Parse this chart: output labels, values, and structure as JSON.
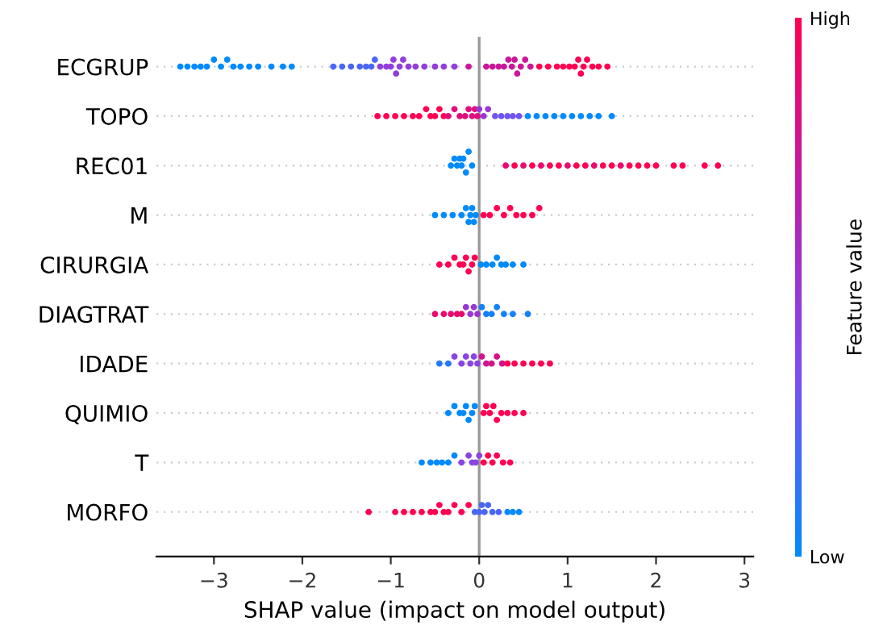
{
  "chart_data": {
    "type": "scatter",
    "orientation": "horizontal",
    "xlabel": "SHAP value (impact on model output)",
    "clabel": "Feature value",
    "categories": [
      "ECGRUP",
      "TOPO",
      "REC01",
      "M",
      "CIRURGIA",
      "DIAGTRAT",
      "IDADE",
      "QUIMIO",
      "T",
      "MORFO"
    ],
    "xlim": [
      -3.65,
      3.1
    ],
    "xticks": [
      {
        "value": -3,
        "label": "−3"
      },
      {
        "value": -2,
        "label": "−2"
      },
      {
        "value": -1,
        "label": "−1"
      },
      0,
      1,
      2,
      3
    ],
    "clim": [
      0,
      1
    ],
    "cticks": [
      {
        "value": 0,
        "label": "Low"
      },
      {
        "value": 1,
        "label": "High"
      }
    ],
    "grid": "y",
    "marker": "circle",
    "tick_labels": "xy",
    "ref_lines": [
      {
        "axis": "x",
        "value": 0,
        "color": "#999999"
      }
    ],
    "series": [
      {
        "x": [
          "ECGRUP",
          "ECGRUP",
          "ECGRUP",
          "ECGRUP",
          "ECGRUP",
          "ECGRUP",
          "ECGRUP",
          "ECGRUP",
          "ECGRUP",
          "ECGRUP",
          "ECGRUP",
          "ECGRUP",
          "ECGRUP",
          "ECGRUP",
          "ECGRUP",
          "ECGRUP",
          "ECGRUP",
          "ECGRUP",
          "ECGRUP",
          "ECGRUP",
          "ECGRUP",
          "ECGRUP",
          "ECGRUP",
          "ECGRUP",
          "ECGRUP",
          "ECGRUP",
          "ECGRUP",
          "ECGRUP",
          "ECGRUP",
          "ECGRUP",
          "ECGRUP",
          "ECGRUP",
          "ECGRUP",
          "ECGRUP",
          "ECGRUP",
          "ECGRUP",
          "ECGRUP",
          "ECGRUP",
          "ECGRUP",
          "ECGRUP",
          "ECGRUP",
          "ECGRUP",
          "ECGRUP",
          "ECGRUP",
          "ECGRUP",
          "ECGRUP",
          "ECGRUP",
          "ECGRUP",
          "ECGRUP",
          "ECGRUP",
          "ECGRUP",
          "ECGRUP",
          "ECGRUP",
          "ECGRUP",
          "ECGRUP",
          "ECGRUP",
          "ECGRUP",
          "ECGRUP",
          "ECGRUP",
          "ECGRUP"
        ],
        "values": [
          -3.38,
          -3.3,
          -3.22,
          -3.15,
          -3.08,
          -3.0,
          -2.92,
          -2.85,
          -2.78,
          -2.7,
          -2.6,
          -2.5,
          -2.35,
          -2.22,
          -2.12,
          -1.65,
          -1.55,
          -1.45,
          -1.35,
          -1.28,
          -1.22,
          -1.18,
          -1.12,
          -1.05,
          -1.0,
          -0.97,
          -0.94,
          -0.9,
          -0.86,
          -0.8,
          -0.72,
          -0.62,
          -0.5,
          -0.4,
          -0.28,
          -0.12,
          0.08,
          0.15,
          0.22,
          0.28,
          0.33,
          0.37,
          0.4,
          0.43,
          0.47,
          0.52,
          0.58,
          0.68,
          0.78,
          0.88,
          0.95,
          1.02,
          1.08,
          1.12,
          1.15,
          1.18,
          1.22,
          1.28,
          1.35,
          1.45
        ],
        "colors": [
          "#008afb",
          "#008afb",
          "#008afb",
          "#008afb",
          "#008afb",
          "#008afb",
          "#008afb",
          "#008afb",
          "#008afb",
          "#008afb",
          "#008afb",
          "#008afb",
          "#008afb",
          "#008afb",
          "#008afb",
          "#4a67f4",
          "#4a67f4",
          "#4a67f4",
          "#4a67f4",
          "#4a67f4",
          "#4a67f4",
          "#4a67f4",
          "#913eda",
          "#913eda",
          "#913eda",
          "#913eda",
          "#913eda",
          "#913eda",
          "#913eda",
          "#913eda",
          "#913eda",
          "#913eda",
          "#913eda",
          "#913eda",
          "#913eda",
          "#ca1799",
          "#ca1799",
          "#ca1799",
          "#ca1799",
          "#ca1799",
          "#ca1799",
          "#ca1799",
          "#ca1799",
          "#ca1799",
          "#ca1799",
          "#ca1799",
          "#ca1799",
          "#ff0052",
          "#ff0052",
          "#ff0052",
          "#ff0052",
          "#ff0052",
          "#ff0052",
          "#ff0052",
          "#ff0052",
          "#ff0052",
          "#ff0052",
          "#ff0052",
          "#ff0052",
          "#ff0052"
        ]
      },
      {
        "x": [
          "TOPO",
          "TOPO",
          "TOPO",
          "TOPO",
          "TOPO",
          "TOPO",
          "TOPO",
          "TOPO",
          "TOPO",
          "TOPO",
          "TOPO",
          "TOPO",
          "TOPO",
          "TOPO",
          "TOPO",
          "TOPO",
          "TOPO",
          "TOPO",
          "TOPO",
          "TOPO",
          "TOPO",
          "TOPO",
          "TOPO",
          "TOPO",
          "TOPO",
          "TOPO",
          "TOPO",
          "TOPO",
          "TOPO",
          "TOPO",
          "TOPO",
          "TOPO",
          "TOPO",
          "TOPO",
          "TOPO",
          "TOPO",
          "TOPO"
        ],
        "values": [
          -1.15,
          -1.05,
          -0.95,
          -0.85,
          -0.75,
          -0.68,
          -0.6,
          -0.55,
          -0.5,
          -0.45,
          -0.4,
          -0.35,
          -0.28,
          -0.22,
          -0.16,
          -0.12,
          -0.08,
          -0.05,
          -0.02,
          0.0,
          0.05,
          0.1,
          0.18,
          0.25,
          0.32,
          0.38,
          0.45,
          0.55,
          0.65,
          0.75,
          0.85,
          0.95,
          1.05,
          1.15,
          1.25,
          1.35,
          1.5
        ],
        "colors": [
          "#ff0052",
          "#ff0052",
          "#ff0052",
          "#ff0052",
          "#ff0052",
          "#ff0052",
          "#ff0052",
          "#ff0052",
          "#ff0052",
          "#ff0052",
          "#ff0052",
          "#e00e7c",
          "#e00e7c",
          "#e00e7c",
          "#e00e7c",
          "#e00e7c",
          "#e00e7c",
          "#e00e7c",
          "#e00e7c",
          "#9a37d0",
          "#9a37d0",
          "#9a37d0",
          "#7055f1",
          "#7055f1",
          "#7055f1",
          "#7055f1",
          "#7055f1",
          "#008afb",
          "#008afb",
          "#008afb",
          "#008afb",
          "#008afb",
          "#008afb",
          "#008afb",
          "#008afb",
          "#008afb",
          "#008afb"
        ]
      },
      {
        "x": [
          "REC01",
          "REC01",
          "REC01",
          "REC01",
          "REC01",
          "REC01",
          "REC01",
          "REC01",
          "REC01",
          "REC01",
          "REC01",
          "REC01",
          "REC01",
          "REC01",
          "REC01",
          "REC01",
          "REC01",
          "REC01",
          "REC01",
          "REC01",
          "REC01",
          "REC01",
          "REC01",
          "REC01",
          "REC01",
          "REC01",
          "REC01",
          "REC01",
          "REC01",
          "REC01",
          "REC01"
        ],
        "values": [
          -0.32,
          -0.28,
          -0.25,
          -0.22,
          -0.2,
          -0.18,
          -0.15,
          -0.12,
          -0.08,
          0.3,
          0.4,
          0.5,
          0.6,
          0.7,
          0.8,
          0.9,
          1.0,
          1.1,
          1.2,
          1.3,
          1.4,
          1.5,
          1.6,
          1.7,
          1.8,
          1.9,
          2.0,
          2.2,
          2.3,
          2.55,
          2.7
        ],
        "colors": [
          "#008afb",
          "#008afb",
          "#008afb",
          "#008afb",
          "#008afb",
          "#008afb",
          "#008afb",
          "#008afb",
          "#008afb",
          "#ea096e",
          "#ff0052",
          "#ea096e",
          "#ff0052",
          "#ea096e",
          "#ff0052",
          "#ff0052",
          "#ea096e",
          "#ff0052",
          "#ff0052",
          "#ea096e",
          "#ff0052",
          "#ff0052",
          "#ea096e",
          "#ff0052",
          "#ff0052",
          "#ff0052",
          "#ff0052",
          "#ff0052",
          "#ff0052",
          "#ff0052",
          "#ff0052"
        ]
      },
      {
        "x": [
          "M",
          "M",
          "M",
          "M",
          "M",
          "M",
          "M",
          "M",
          "M",
          "M",
          "M",
          "M",
          "M",
          "M",
          "M",
          "M",
          "M",
          "M",
          "M"
        ],
        "values": [
          -0.5,
          -0.4,
          -0.3,
          -0.2,
          -0.15,
          -0.12,
          -0.1,
          -0.08,
          -0.06,
          -0.04,
          0.05,
          0.12,
          0.2,
          0.28,
          0.35,
          0.42,
          0.5,
          0.6,
          0.68
        ],
        "colors": [
          "#008afb",
          "#008afb",
          "#008afb",
          "#008afb",
          "#008afb",
          "#008afb",
          "#008afb",
          "#008afb",
          "#008afb",
          "#008afb",
          "#ff0052",
          "#ff0052",
          "#ff0052",
          "#ff0052",
          "#ff0052",
          "#ff0052",
          "#ff0052",
          "#ff0052",
          "#ff0052"
        ]
      },
      {
        "x": [
          "CIRURGIA",
          "CIRURGIA",
          "CIRURGIA",
          "CIRURGIA",
          "CIRURGIA",
          "CIRURGIA",
          "CIRURGIA",
          "CIRURGIA",
          "CIRURGIA",
          "CIRURGIA",
          "CIRURGIA",
          "CIRURGIA",
          "CIRURGIA",
          "CIRURGIA",
          "CIRURGIA",
          "CIRURGIA",
          "CIRURGIA"
        ],
        "values": [
          -0.45,
          -0.35,
          -0.28,
          -0.22,
          -0.18,
          -0.15,
          -0.12,
          -0.08,
          -0.05,
          0.02,
          0.08,
          0.15,
          0.2,
          0.25,
          0.3,
          0.38,
          0.5
        ],
        "colors": [
          "#ff0052",
          "#ff0052",
          "#ff0052",
          "#ff0052",
          "#ff0052",
          "#ff0052",
          "#ff0052",
          "#ff0052",
          "#ff0052",
          "#008afb",
          "#008afb",
          "#008afb",
          "#008afb",
          "#008afb",
          "#008afb",
          "#008afb",
          "#008afb"
        ]
      },
      {
        "x": [
          "DIAGTRAT",
          "DIAGTRAT",
          "DIAGTRAT",
          "DIAGTRAT",
          "DIAGTRAT",
          "DIAGTRAT",
          "DIAGTRAT",
          "DIAGTRAT",
          "DIAGTRAT",
          "DIAGTRAT",
          "DIAGTRAT",
          "DIAGTRAT",
          "DIAGTRAT",
          "DIAGTRAT",
          "DIAGTRAT",
          "DIAGTRAT"
        ],
        "values": [
          -0.5,
          -0.4,
          -0.32,
          -0.25,
          -0.2,
          -0.15,
          -0.1,
          -0.06,
          -0.02,
          0.03,
          0.08,
          0.14,
          0.2,
          0.28,
          0.38,
          0.55
        ],
        "colors": [
          "#ea096e",
          "#ea096e",
          "#ea096e",
          "#ea096e",
          "#ea096e",
          "#9a37d0",
          "#9a37d0",
          "#9a37d0",
          "#9a37d0",
          "#1381f9",
          "#1381f9",
          "#1381f9",
          "#1381f9",
          "#1381f9",
          "#1381f9",
          "#1381f9"
        ]
      },
      {
        "x": [
          "IDADE",
          "IDADE",
          "IDADE",
          "IDADE",
          "IDADE",
          "IDADE",
          "IDADE",
          "IDADE",
          "IDADE",
          "IDADE",
          "IDADE",
          "IDADE",
          "IDADE",
          "IDADE",
          "IDADE",
          "IDADE",
          "IDADE",
          "IDADE",
          "IDADE"
        ],
        "values": [
          -0.45,
          -0.35,
          -0.28,
          -0.2,
          -0.15,
          -0.1,
          -0.06,
          -0.02,
          0.03,
          0.08,
          0.14,
          0.2,
          0.26,
          0.32,
          0.4,
          0.5,
          0.6,
          0.7,
          0.8
        ],
        "colors": [
          "#2578f8",
          "#2578f8",
          "#8845e3",
          "#8845e3",
          "#8845e3",
          "#8845e3",
          "#8845e3",
          "#8845e3",
          "#d4138a",
          "#d4138a",
          "#d4138a",
          "#d4138a",
          "#d4138a",
          "#ff0052",
          "#ff0052",
          "#ff0052",
          "#ff0052",
          "#ff0052",
          "#ff0052"
        ]
      },
      {
        "x": [
          "QUIMIO",
          "QUIMIO",
          "QUIMIO",
          "QUIMIO",
          "QUIMIO",
          "QUIMIO",
          "QUIMIO",
          "QUIMIO",
          "QUIMIO",
          "QUIMIO",
          "QUIMIO",
          "QUIMIO",
          "QUIMIO",
          "QUIMIO",
          "QUIMIO",
          "QUIMIO",
          "QUIMIO"
        ],
        "values": [
          -0.35,
          -0.28,
          -0.22,
          -0.18,
          -0.15,
          -0.12,
          -0.08,
          -0.05,
          0.05,
          0.08,
          0.12,
          0.16,
          0.2,
          0.25,
          0.32,
          0.4,
          0.5
        ],
        "colors": [
          "#008afb",
          "#008afb",
          "#008afb",
          "#008afb",
          "#008afb",
          "#008afb",
          "#008afb",
          "#008afb",
          "#ff0052",
          "#ff0052",
          "#ff0052",
          "#ff0052",
          "#ff0052",
          "#ff0052",
          "#ff0052",
          "#ff0052",
          "#ff0052"
        ]
      },
      {
        "x": [
          "T",
          "T",
          "T",
          "T",
          "T",
          "T",
          "T",
          "T",
          "T",
          "T",
          "T",
          "T",
          "T",
          "T",
          "T",
          "T",
          "T"
        ],
        "values": [
          -0.65,
          -0.55,
          -0.48,
          -0.42,
          -0.35,
          -0.28,
          -0.2,
          -0.12,
          -0.08,
          -0.04,
          0.0,
          0.05,
          0.1,
          0.15,
          0.2,
          0.27,
          0.35
        ],
        "colors": [
          "#008afb",
          "#008afb",
          "#008afb",
          "#008afb",
          "#008afb",
          "#008afb",
          "#8845e3",
          "#8845e3",
          "#8845e3",
          "#8845e3",
          "#8845e3",
          "#ff0052",
          "#ff0052",
          "#ff0052",
          "#ff0052",
          "#ff0052",
          "#ff0052"
        ]
      },
      {
        "x": [
          "MORFO",
          "MORFO",
          "MORFO",
          "MORFO",
          "MORFO",
          "MORFO",
          "MORFO",
          "MORFO",
          "MORFO",
          "MORFO",
          "MORFO",
          "MORFO",
          "MORFO",
          "MORFO",
          "MORFO",
          "MORFO",
          "MORFO",
          "MORFO",
          "MORFO",
          "MORFO",
          "MORFO",
          "MORFO",
          "MORFO"
        ],
        "values": [
          -1.25,
          -0.95,
          -0.85,
          -0.75,
          -0.65,
          -0.55,
          -0.5,
          -0.45,
          -0.4,
          -0.35,
          -0.28,
          -0.2,
          -0.12,
          -0.05,
          0.0,
          0.03,
          0.06,
          0.1,
          0.15,
          0.22,
          0.32,
          0.38,
          0.45
        ],
        "colors": [
          "#ff0052",
          "#ff0052",
          "#ff0052",
          "#ff0052",
          "#ff0052",
          "#ff0052",
          "#ff0052",
          "#ff0052",
          "#ff0052",
          "#ff0052",
          "#ff0052",
          "#ff0052",
          "#ff0052",
          "#4a67f4",
          "#4a67f4",
          "#4a67f4",
          "#4a67f4",
          "#4a67f4",
          "#4a67f4",
          "#4a67f4",
          "#008afb",
          "#008afb",
          "#008afb"
        ]
      }
    ]
  }
}
